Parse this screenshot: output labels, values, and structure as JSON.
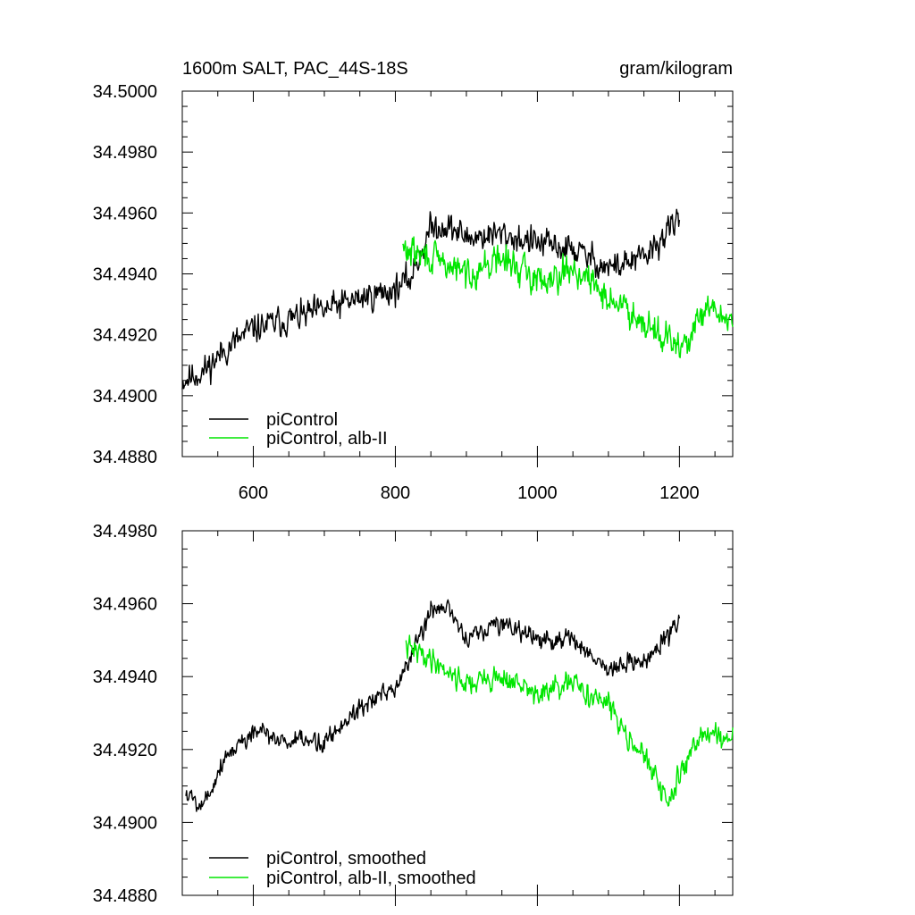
{
  "chart_data": [
    {
      "type": "line",
      "title_left": "1600m SALT, PAC_44S-18S",
      "title_right": "gram/kilogram",
      "xlabel": "",
      "ylabel": "",
      "xlim": [
        500,
        1275
      ],
      "ylim": [
        34.488,
        34.5
      ],
      "xticks": [
        600,
        800,
        1000,
        1200
      ],
      "xtick_labels": [
        "600",
        "800",
        "1000",
        "1200"
      ],
      "yticks": [
        34.488,
        34.49,
        34.492,
        34.494,
        34.496,
        34.498,
        34.5
      ],
      "ytick_labels": [
        "34.4880",
        "34.4900",
        "34.4920",
        "34.4940",
        "34.4960",
        "34.4980",
        "34.5000"
      ],
      "legend_position": "bottom-left",
      "series": [
        {
          "name": "piControl",
          "color": "#000000",
          "x_start": 500,
          "x_end": 1200,
          "anchors_x": [
            500,
            530,
            560,
            600,
            650,
            700,
            750,
            800,
            820,
            850,
            870,
            900,
            950,
            1000,
            1050,
            1100,
            1150,
            1200
          ],
          "anchors_y": [
            34.4905,
            34.4908,
            34.4915,
            34.4922,
            34.4925,
            34.4928,
            34.4932,
            34.4935,
            34.4938,
            34.4955,
            34.4956,
            34.4952,
            34.4953,
            34.495,
            34.4948,
            34.4942,
            34.4945,
            34.4958
          ],
          "amplitude": 0.00105,
          "seed": 11
        },
        {
          "name": "piControl, alb-II",
          "color": "#00e600",
          "x_start": 810,
          "x_end": 1275,
          "anchors_x": [
            810,
            850,
            900,
            950,
            1000,
            1050,
            1100,
            1150,
            1200,
            1240,
            1275
          ],
          "anchors_y": [
            34.4948,
            34.4945,
            34.494,
            34.4945,
            34.4938,
            34.4942,
            34.4932,
            34.4925,
            34.4915,
            34.4928,
            34.4925
          ],
          "amplitude": 0.0011,
          "seed": 29
        }
      ]
    },
    {
      "type": "line",
      "xlabel": "",
      "ylabel": "",
      "xlim": [
        500,
        1275
      ],
      "ylim": [
        34.488,
        34.498
      ],
      "xticks": [
        600,
        800,
        1000,
        1200
      ],
      "yticks": [
        34.488,
        34.49,
        34.492,
        34.494,
        34.496,
        34.498
      ],
      "ytick_labels": [
        "34.4880",
        "34.4900",
        "34.4920",
        "34.4940",
        "34.4960",
        "34.4980"
      ],
      "legend_position": "bottom-left",
      "series": [
        {
          "name": "piControl, smoothed",
          "color": "#000000",
          "x_start": 505,
          "x_end": 1200,
          "anchors_x": [
            505,
            530,
            560,
            600,
            650,
            700,
            750,
            800,
            850,
            870,
            900,
            950,
            1000,
            1050,
            1100,
            1150,
            1200
          ],
          "anchors_y": [
            34.4908,
            34.4905,
            34.4918,
            34.4925,
            34.4922,
            34.4922,
            34.4932,
            34.4936,
            34.4958,
            34.496,
            34.495,
            34.4955,
            34.495,
            34.495,
            34.4942,
            34.4944,
            34.4955
          ],
          "amplitude": 0.0006,
          "seed": 5
        },
        {
          "name": "piControl, alb-II, smoothed",
          "color": "#00e600",
          "x_start": 815,
          "x_end": 1275,
          "anchors_x": [
            815,
            850,
            900,
            950,
            1000,
            1050,
            1100,
            1150,
            1185,
            1220,
            1250,
            1275
          ],
          "anchors_y": [
            34.4948,
            34.4945,
            34.4938,
            34.494,
            34.4935,
            34.4938,
            34.4932,
            34.4918,
            34.4905,
            34.4922,
            34.4925,
            34.4922
          ],
          "amplitude": 0.0007,
          "seed": 41
        }
      ]
    }
  ]
}
